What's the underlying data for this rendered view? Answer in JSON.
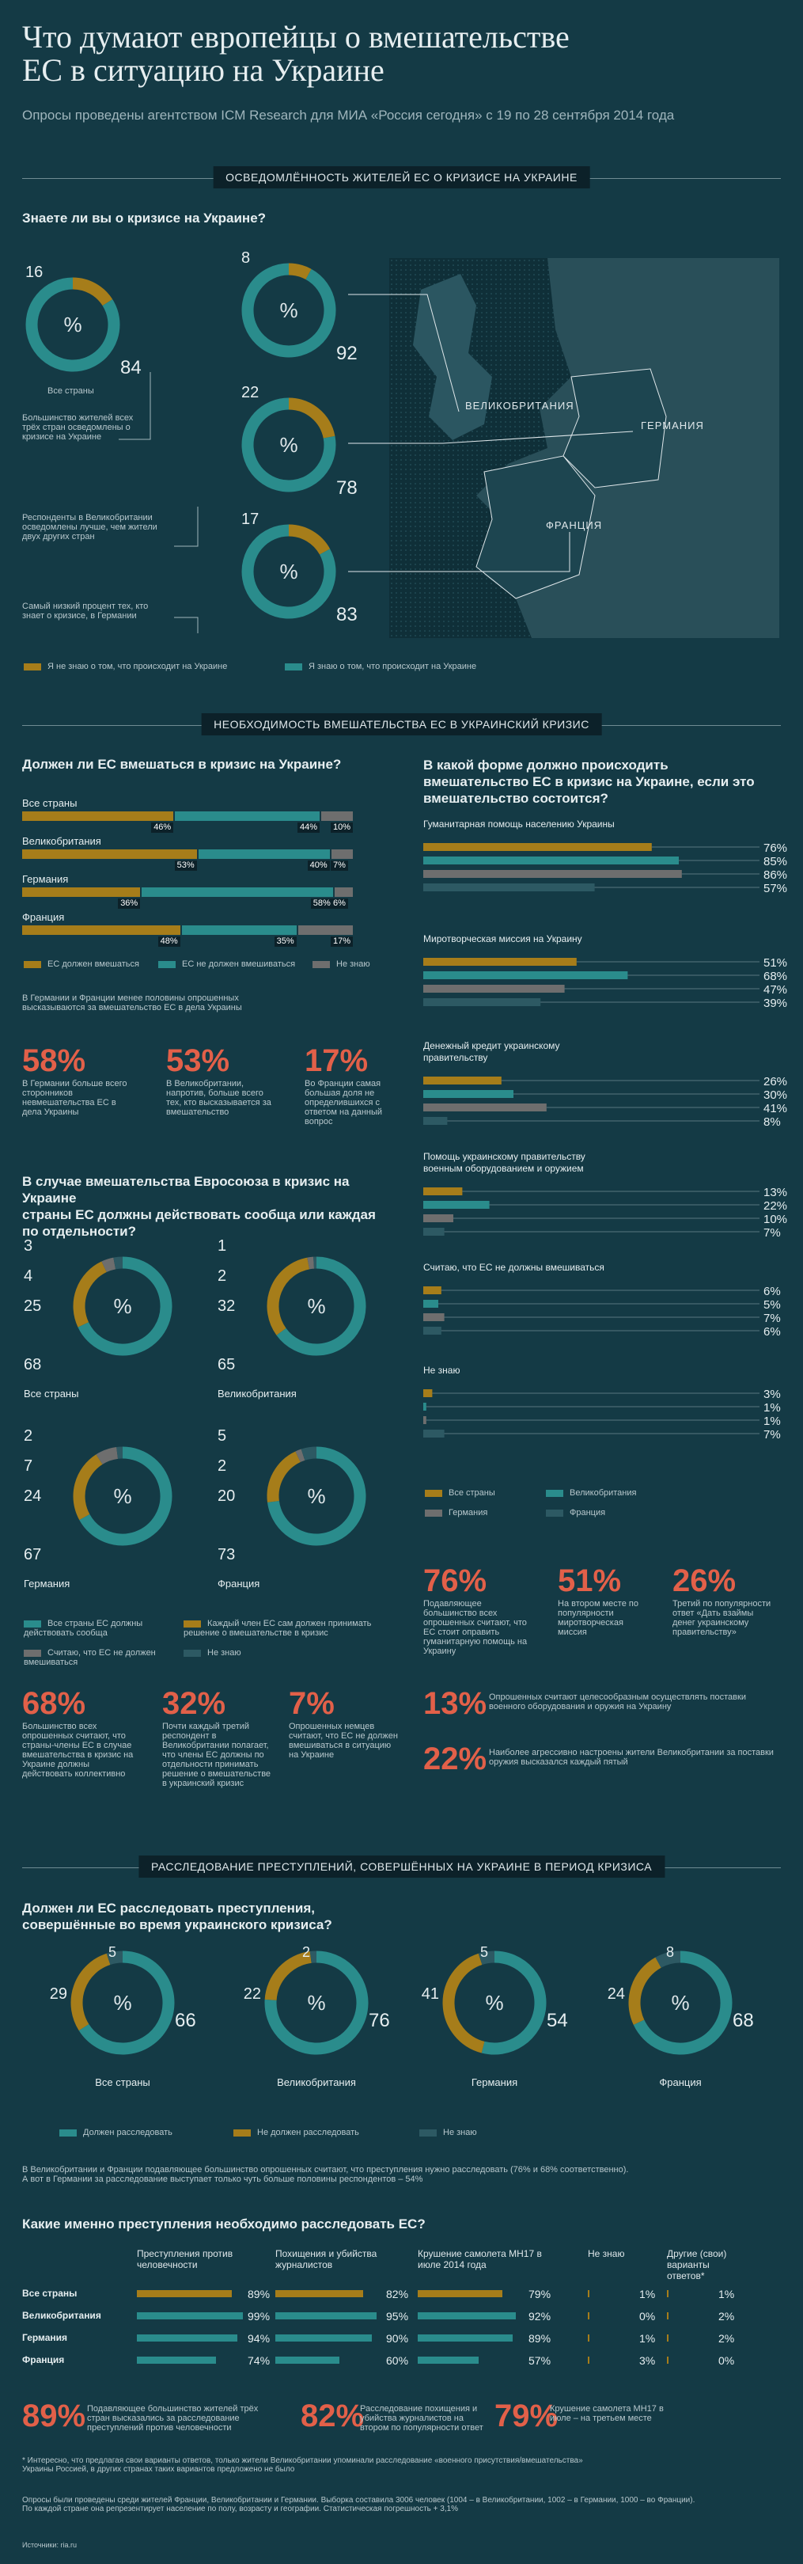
{
  "header": {
    "title_line1": "Что думают европейцы о вмешательстве",
    "title_line2": "ЕС в ситуацию на Украине",
    "subtitle": "Опросы проведены агентством ICM Research для МИА «Россия сегодня» с 19 по 28 сентября 2014 года"
  },
  "colors": {
    "yes": "#2a8c8c",
    "no": "#a67d1a",
    "other": "#6e6e6e",
    "alt": "#2d5963",
    "accent": "#e26049",
    "bg": "#143a45"
  },
  "sections": {
    "s1": "ОСВЕДОМЛЁННОСТЬ ЖИТЕЛЕЙ ЕС О КРИЗИСЕ НА УКРАИНЕ",
    "s2": "НЕОБХОДИМОСТЬ ВМЕШАТЕЛЬСТВА ЕС В УКРАИНСКИЙ КРИЗИС",
    "s3": "РАССЛЕДОВАНИЕ ПРЕСТУПЛЕНИЙ, СОВЕРШЁННЫХ НА УКРАИНЕ В ПЕРИОД КРИЗИСА"
  },
  "awareness": {
    "question": "Знаете ли вы о кризисе на Украине?",
    "all_label": "Все страны",
    "note1": "Большинство жителей всех трёх стран осведомлены о кризисе на Украине",
    "note2": "Респонденты в Великобритании осведомлены лучше, чем жители двух других стран",
    "note3": "Самый низкий процент тех, кто знает о кризисе, в Германии",
    "map_uk": "ВЕЛИКОБРИТАНИЯ",
    "map_de": "ГЕРМАНИЯ",
    "map_fr": "ФРАНЦИЯ",
    "legend_no": "Я не знаю о том, что происходит на Украине",
    "legend_yes": "Я знаю о том, что происходит на Украине"
  },
  "chart_data": [
    {
      "type": "pie",
      "id": "awareness",
      "series": [
        {
          "name": "Все страны",
          "values": [
            16,
            84
          ]
        },
        {
          "name": "Великобритания",
          "values": [
            8,
            92
          ]
        },
        {
          "name": "Германия",
          "values": [
            22,
            78
          ]
        },
        {
          "name": "Франция",
          "values": [
            17,
            83
          ]
        }
      ]
    },
    {
      "type": "bar",
      "id": "intervene",
      "categories": [
        "Все страны",
        "Великобритания",
        "Германия",
        "Франция"
      ],
      "series": [
        {
          "name": "ЕС должен вмешаться",
          "values": [
            46,
            53,
            36,
            48
          ]
        },
        {
          "name": "ЕС не должен вмешиваться",
          "values": [
            44,
            40,
            58,
            35
          ]
        },
        {
          "name": "Не знаю",
          "values": [
            10,
            7,
            6,
            17
          ]
        }
      ]
    },
    {
      "type": "bar",
      "id": "form",
      "categories": [
        "Гуманитарная помощь населению Украины",
        "Миротворческая миссия на Украину",
        "Денежный кредит украинскому правительству",
        "Помощь украинскому правительству военным оборудованием и оружием",
        "Считаю, что ЕС не должны вмешиваться",
        "Не знаю"
      ],
      "series": [
        {
          "name": "Все страны",
          "values": [
            76,
            51,
            26,
            13,
            6,
            3
          ]
        },
        {
          "name": "Великобритания",
          "values": [
            85,
            68,
            30,
            22,
            5,
            1
          ]
        },
        {
          "name": "Германия",
          "values": [
            86,
            47,
            41,
            10,
            7,
            1
          ]
        },
        {
          "name": "Франция",
          "values": [
            57,
            39,
            8,
            7,
            6,
            7
          ]
        }
      ]
    },
    {
      "type": "pie",
      "id": "together",
      "series": [
        {
          "name": "Все страны",
          "values": [
            68,
            25,
            4,
            3
          ]
        },
        {
          "name": "Великобритания",
          "values": [
            65,
            32,
            2,
            1
          ]
        },
        {
          "name": "Германия",
          "values": [
            67,
            24,
            7,
            2
          ]
        },
        {
          "name": "Франция",
          "values": [
            73,
            20,
            2,
            5
          ]
        }
      ]
    },
    {
      "type": "pie",
      "id": "investigate",
      "series": [
        {
          "name": "Все страны",
          "values": [
            66,
            29,
            5
          ]
        },
        {
          "name": "Великобритания",
          "values": [
            76,
            22,
            2
          ]
        },
        {
          "name": "Германия",
          "values": [
            54,
            41,
            5
          ]
        },
        {
          "name": "Франция",
          "values": [
            68,
            24,
            8
          ]
        }
      ]
    },
    {
      "type": "table",
      "id": "crimes",
      "columns": [
        "Преступления против человечности",
        "Похищения и убийства журналистов",
        "Крушение самолета MH17 в июле 2014 года",
        "Не знаю",
        "Другие (свои) варианты ответов*"
      ],
      "rows": [
        {
          "name": "Все страны",
          "values": [
            89,
            82,
            79,
            1,
            1
          ]
        },
        {
          "name": "Великобритания",
          "values": [
            99,
            95,
            92,
            0,
            2
          ]
        },
        {
          "name": "Германия",
          "values": [
            94,
            90,
            89,
            1,
            2
          ]
        },
        {
          "name": "Франция",
          "values": [
            74,
            60,
            57,
            3,
            0
          ]
        }
      ]
    }
  ],
  "intervene": {
    "question": "Должен ли ЕС вмешаться в кризис на Украине?",
    "rows": [
      "Все страны",
      "Великобритания",
      "Германия",
      "Франция"
    ],
    "legend_yes": "ЕС должен вмешаться",
    "legend_no": "ЕС не должен вмешиваться",
    "legend_dk": "Не знаю",
    "note": "В Германии и Франции менее половины опрошенных высказываются за вмешательство ЕС в дела Украины",
    "stats": [
      {
        "v": "58%",
        "t": "В Германии больше всего сторонников невмешательства ЕС в дела Украины"
      },
      {
        "v": "53%",
        "t": "В Великобритании, напротив, больше всего тех, кто высказывается за вмешательство"
      },
      {
        "v": "17%",
        "t": "Во Франции самая большая доля не определившихся с ответом на данный вопрос"
      }
    ]
  },
  "form": {
    "question": "В какой форме должно происходить вмешательство ЕС в кризис на Украине, если это вмешательство состоится?",
    "groups": [
      "Гуманитарная помощь населению Украины",
      "Миротворческая миссия на Украину",
      "Денежный кредит украинскому правительству",
      "Помощь украинскому правительству военным оборудованием и оружием",
      "Считаю, что ЕС не должны вмешиваться",
      "Не знаю"
    ],
    "legend": [
      "Все страны",
      "Великобритания",
      "Германия",
      "Франция"
    ],
    "stats": [
      {
        "v": "76%",
        "t": "Подавляющее большинство всех опрошенных считают, что ЕС стоит оправить гуманитарную помощь на Украину"
      },
      {
        "v": "51%",
        "t": "На втором месте по популярности миротворческая миссия"
      },
      {
        "v": "26%",
        "t": "Третий по популярности ответ «Дать взаймы денег украинскому правительству»"
      }
    ],
    "stats2": [
      {
        "v": "13%",
        "t": "Опрошенных считают целесообразным осуществлять поставки военного оборудования и оружия на Украину"
      },
      {
        "v": "22%",
        "t": "Наиболее агрессивно настроены жители Великобритании за поставки оружия высказался каждый пятый"
      }
    ]
  },
  "together": {
    "question_l1": "В случае вмешательства Евросоюза в кризис на Украине",
    "question_l2": "страны ЕС должны действовать сообща или каждая",
    "question_l3": "по отдельности?",
    "labels": [
      "Все страны",
      "Великобритания",
      "Германия",
      "Франция"
    ],
    "legend": [
      "Все страны ЕС должны действовать сообща",
      "Каждый член ЕС сам должен принимать решение о вмешательстве в кризис",
      "Считаю, что ЕС не должен вмешиваться",
      "Не знаю"
    ],
    "stats": [
      {
        "v": "68%",
        "t": "Большинство всех опрошенных считают, что страны-члены ЕС в случае вмешательства в кризис на Украине должны действовать коллективно"
      },
      {
        "v": "32%",
        "t": "Почти каждый третий респондент в Великобритании полагает, что члены ЕС должны по отдельности принимать решение о вмешательстве в украинский кризис"
      },
      {
        "v": "7%",
        "t": "Опрошенных немцев считают, что ЕС не должен вмешиваться в ситуацию на Украине"
      }
    ]
  },
  "investigate": {
    "question_l1": "Должен ли ЕС расследовать преступления,",
    "question_l2": "совершённые во время украинского кризиса?",
    "labels": [
      "Все страны",
      "Великобритания",
      "Германия",
      "Франция"
    ],
    "legend": [
      "Должен расследовать",
      "Не должен расследовать",
      "Не знаю"
    ],
    "note_l1": "В Великобритании и Франции подавляющее большинство опрошенных считают, что преступления нужно расследовать (76% и 68% соответственно).",
    "note_l2": "А вот в Германии за расследование выступает только чуть больше половины респондентов – 54%"
  },
  "crimes": {
    "question": "Какие именно преступления необходимо расследовать ЕС?",
    "cols": [
      "Преступления против человечности",
      "Похищения и убийства журналистов",
      "Крушение самолета MH17 в июле 2014 года",
      "Не знаю",
      "Другие (свои) варианты ответов*"
    ],
    "rows": [
      "Все страны",
      "Великобритания",
      "Германия",
      "Франция"
    ],
    "stats": [
      {
        "v": "89%",
        "t": "Подавляющее большинство жителей трёх стран высказались за расследование преступлений против человечности"
      },
      {
        "v": "82%",
        "t": "Расследование похищения и убийства журналистов на втором по популярности ответ"
      },
      {
        "v": "79%",
        "t": "Крушение самолета MH17 в июле – на третьем месте"
      }
    ],
    "footnote_l1": "* Интересно, что предлагая свои варианты ответов, только жители Великобритании упоминали расследование «военного присутствия/вмешательства»",
    "footnote_l2": "Украины Россией, в других странах таких вариантов предложено не было",
    "method_l1": "Опросы были проведены среди жителей Франции, Великобритании и Германии. Выборка составила 3006 человек (1004 – в Великобритании, 1002 – в Германии, 1000 – во Франции).",
    "method_l2": "По каждой стране она репрезентирует население по полу, возрасту и географии. Статистическая погрешность + 3,1%",
    "source": "Источники: ria.ru"
  }
}
